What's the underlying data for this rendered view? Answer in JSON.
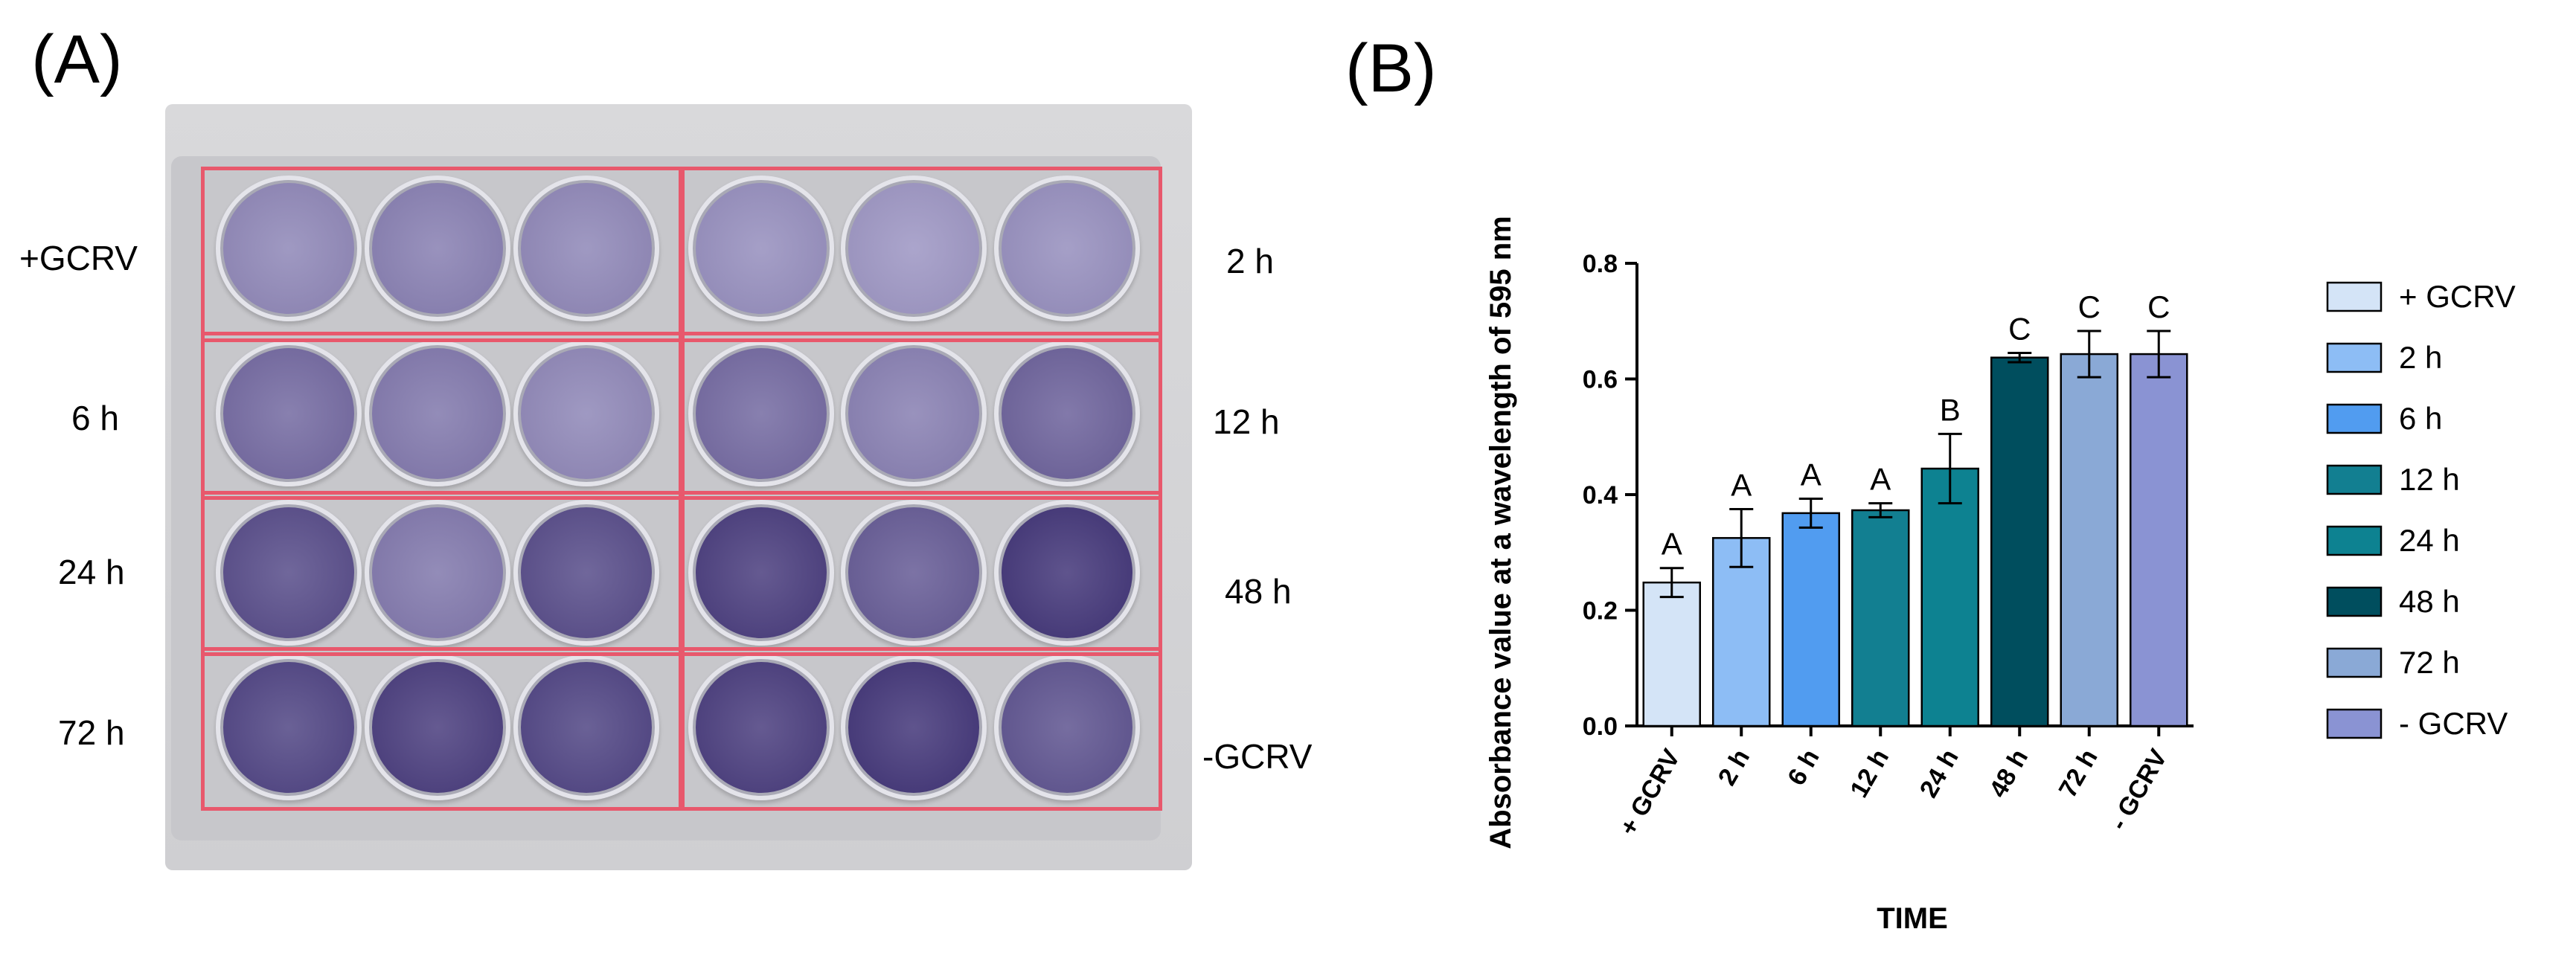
{
  "panel_a": {
    "letter": "(A)",
    "row_labels_left": [
      "+GCRV",
      "6 h",
      "24 h",
      "72 h"
    ],
    "row_labels_right": [
      "2 h",
      "12 h",
      "48 h",
      "-GCRV"
    ],
    "frame_color": "#e8586c",
    "well_stain_levels": [
      [
        0.35,
        0.4,
        0.35,
        0.3,
        0.25,
        0.3
      ],
      [
        0.55,
        0.45,
        0.35,
        0.55,
        0.4,
        0.6
      ],
      [
        0.75,
        0.45,
        0.75,
        0.85,
        0.65,
        0.9
      ],
      [
        0.8,
        0.85,
        0.8,
        0.85,
        0.9,
        0.7
      ]
    ]
  },
  "panel_b": {
    "letter": "(B)"
  },
  "chart_data": {
    "type": "bar",
    "categories": [
      "+ GCRV",
      "2 h",
      "6 h",
      "12 h",
      "24 h",
      "48 h",
      "72 h",
      "- GCRV"
    ],
    "values": [
      0.248,
      0.325,
      0.368,
      0.373,
      0.445,
      0.637,
      0.643,
      0.643
    ],
    "errors": [
      0.025,
      0.05,
      0.025,
      0.012,
      0.06,
      0.008,
      0.04,
      0.04
    ],
    "significance_letters": [
      "A",
      "A",
      "A",
      "A",
      "B",
      "C",
      "C",
      "C"
    ],
    "colors": [
      "#d4e4f7",
      "#8dbdf5",
      "#519cf0",
      "#127f91",
      "#0d8291",
      "#004e5e",
      "#8aa9d6",
      "#8a93d3"
    ],
    "xlabel": "TIME",
    "ylabel": "Absorbance value at a wavelength of 595 nm",
    "ylim": [
      0,
      0.8
    ],
    "yticks": [
      "0.0",
      "0.2",
      "0.4",
      "0.6",
      "0.8"
    ],
    "ytick_values": [
      0,
      0.2,
      0.4,
      0.6,
      0.8
    ],
    "legend": [
      "+ GCRV",
      "2 h",
      "6 h",
      "12 h",
      "24 h",
      "48 h",
      "72 h",
      "- GCRV"
    ],
    "legend_position": "right",
    "grid": false
  }
}
